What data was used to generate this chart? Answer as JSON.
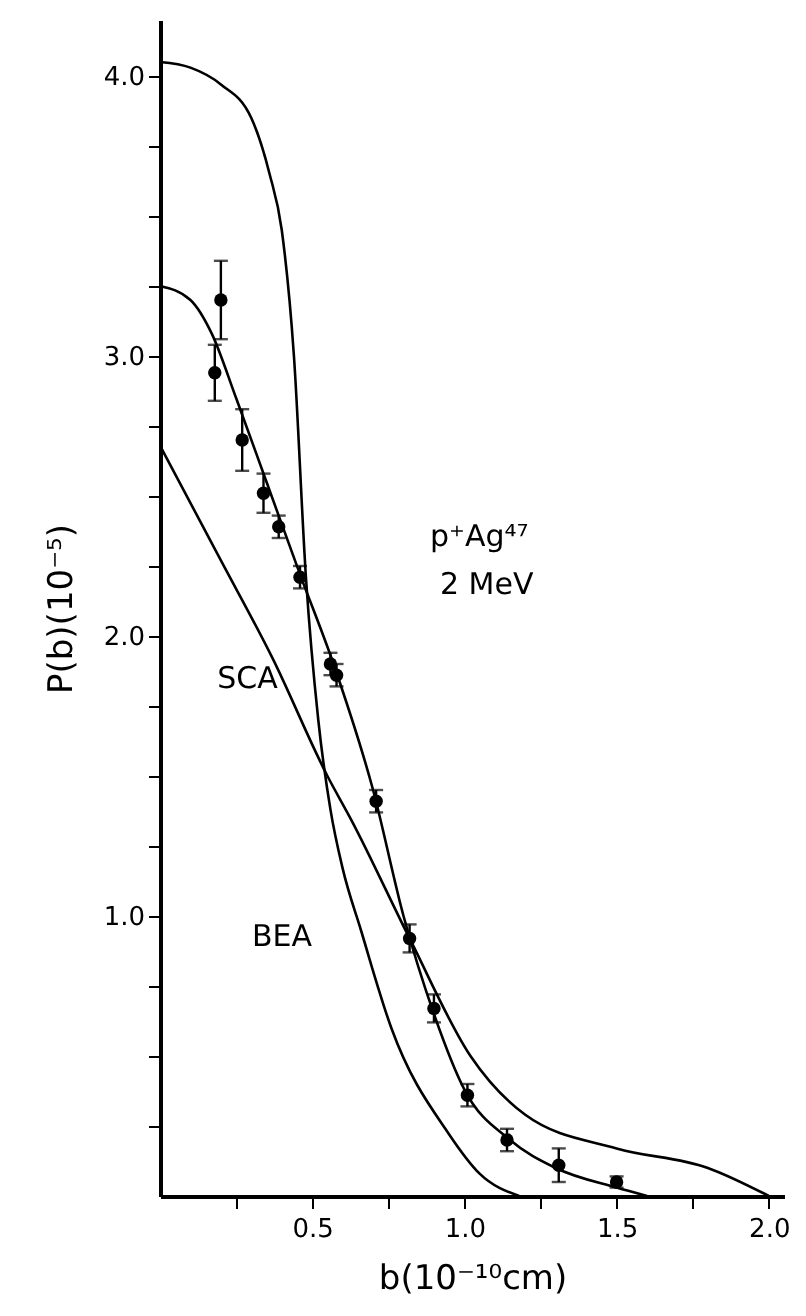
{
  "chart_data": {
    "type": "line",
    "xlabel": "b(10⁻¹⁰cm)",
    "ylabel": "P(b)(10⁻⁵)",
    "xlim": [
      0,
      2.05
    ],
    "ylim": [
      0,
      4.2
    ],
    "xticks": [
      {
        "value": 0.25,
        "label": null
      },
      {
        "value": 0.5,
        "label": "0.5"
      },
      {
        "value": 0.75,
        "label": null
      },
      {
        "value": 1,
        "label": "1.0"
      },
      {
        "value": 1.25,
        "label": null
      },
      {
        "value": 1.5,
        "label": "1.5"
      },
      {
        "value": 1.75,
        "label": null
      },
      {
        "value": 2,
        "label": "2.0"
      }
    ],
    "yticks": [
      {
        "value": 0.25,
        "label": null
      },
      {
        "value": 0.5,
        "label": null
      },
      {
        "value": 0.75,
        "label": null
      },
      {
        "value": 1,
        "label": "1.0"
      },
      {
        "value": 1.25,
        "label": null
      },
      {
        "value": 1.5,
        "label": null
      },
      {
        "value": 1.75,
        "label": null
      },
      {
        "value": 2,
        "label": "2.0"
      },
      {
        "value": 2.25,
        "label": null
      },
      {
        "value": 2.5,
        "label": null
      },
      {
        "value": 2.75,
        "label": null
      },
      {
        "value": 3,
        "label": "3.0"
      },
      {
        "value": 3.25,
        "label": null
      },
      {
        "value": 3.5,
        "label": null
      },
      {
        "value": 3.75,
        "label": null
      },
      {
        "value": 4,
        "label": "4.0"
      }
    ],
    "grid": false,
    "series": [
      {
        "type": "scatter",
        "marker": "circle",
        "color": "#000000",
        "x": [
          0.18,
          0.2,
          0.27,
          0.34,
          0.39,
          0.46,
          0.56,
          0.58,
          0.71,
          0.82,
          0.9,
          1.01,
          1.14,
          1.31,
          1.5
        ],
        "values": [
          2.94,
          3.2,
          2.7,
          2.51,
          2.39,
          2.21,
          1.9,
          1.86,
          1.41,
          0.92,
          0.67,
          0.36,
          0.2,
          0.11,
          0.05
        ],
        "errors": [
          0.1,
          0.14,
          0.11,
          0.07,
          0.04,
          0.04,
          0.04,
          0.04,
          0.04,
          0.05,
          0.05,
          0.04,
          0.04,
          0.06,
          0.02
        ]
      },
      {
        "color": "#000000",
        "x": [
          0,
          0.1,
          0.17,
          0.25,
          0.35,
          0.46,
          0.57,
          0.7,
          0.8,
          0.9,
          1.0,
          1.15,
          1.3,
          1.5,
          1.6
        ],
        "values": [
          3.25,
          3.2,
          3.08,
          2.85,
          2.55,
          2.22,
          1.9,
          1.45,
          1.0,
          0.65,
          0.38,
          0.2,
          0.1,
          0.03,
          0
        ]
      },
      {
        "color": "#000000",
        "x": [
          0,
          0.1,
          0.2,
          0.3,
          0.36,
          0.4,
          0.44,
          0.48,
          0.52,
          0.56,
          0.6,
          0.66,
          0.76,
          0.95,
          1.05,
          1.18
        ],
        "values": [
          4.05,
          4.03,
          3.97,
          3.85,
          3.65,
          3.45,
          3.0,
          2.2,
          1.7,
          1.38,
          1.17,
          0.95,
          0.6,
          0.22,
          0.08,
          0
        ]
      },
      {
        "color": "#000000",
        "x": [
          0,
          0.2,
          0.37,
          0.55,
          0.63,
          0.82,
          1.02,
          1.2,
          1.5,
          1.8,
          2.0
        ],
        "values": [
          2.68,
          2.27,
          1.92,
          1.5,
          1.34,
          0.92,
          0.5,
          0.29,
          0.17,
          0.1,
          0
        ]
      }
    ],
    "annotations": [
      {
        "text": "SCA",
        "x": 0.4,
        "y": 1.85
      },
      "BEA",
      "p⁺Ag⁴⁷",
      "2 MeV"
    ]
  }
}
